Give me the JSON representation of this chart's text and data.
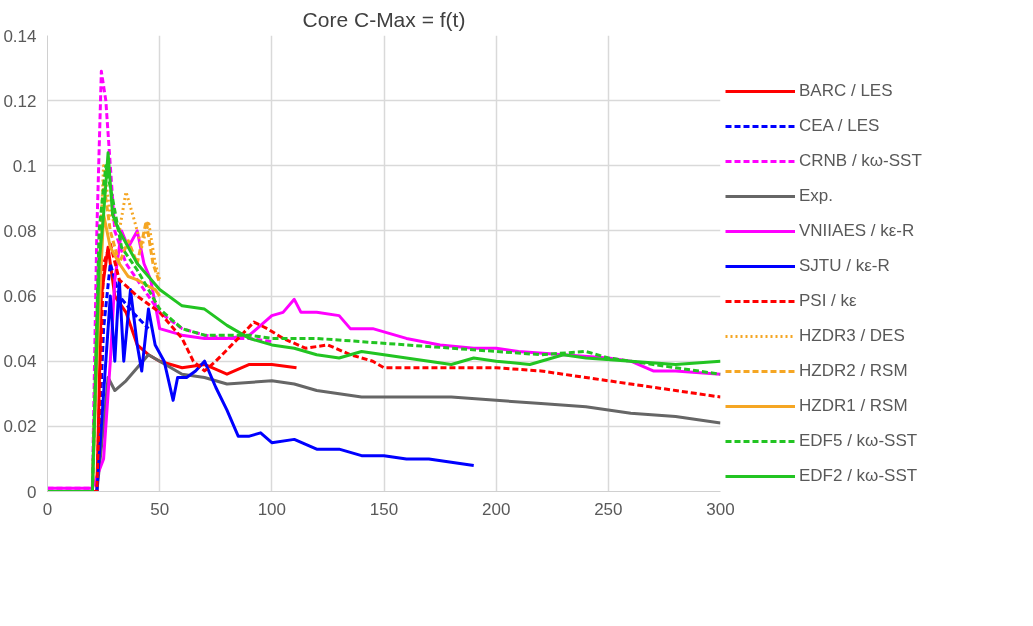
{
  "chart_data": {
    "type": "line",
    "title": "Core C-Max = f(t)",
    "xlim": [
      0,
      300
    ],
    "xticks": [
      0,
      50,
      100,
      150,
      200,
      250,
      300
    ],
    "ylim": [
      0,
      0.14
    ],
    "yticks": [
      0,
      0.02,
      0.04,
      0.06,
      0.08,
      0.1,
      0.12,
      0.14
    ],
    "grid": true,
    "legend": "right",
    "marker": "none",
    "series": [
      {
        "name": "BARC / LES",
        "color": "#ff0000",
        "line_style": "solid",
        "x": [
          0,
          22,
          24,
          27,
          30,
          35,
          40,
          45,
          50,
          60,
          70,
          80,
          90,
          100,
          111
        ],
        "values": [
          0,
          0,
          0.06,
          0.075,
          0.06,
          0.055,
          0.045,
          0.042,
          0.04,
          0.038,
          0.039,
          0.036,
          0.039,
          0.039,
          0.038
        ]
      },
      {
        "name": "CEA / LES",
        "color": "#0000ff",
        "line_style": "dashed",
        "x": [
          0,
          22,
          25,
          28,
          32,
          38,
          45
        ],
        "values": [
          0,
          0,
          0.05,
          0.07,
          0.06,
          0.055,
          0.05
        ]
      },
      {
        "name": "CRNB / kω-SST",
        "color": "#ff00ff",
        "line_style": "dashed",
        "x": [
          0,
          20,
          22,
          24,
          26,
          28,
          30,
          35,
          40,
          45,
          50,
          60,
          70,
          80,
          90,
          100
        ],
        "values": [
          0.001,
          0.001,
          0.08,
          0.129,
          0.12,
          0.1,
          0.08,
          0.07,
          0.065,
          0.06,
          0.055,
          0.05,
          0.048,
          0.047,
          0.047,
          0.046
        ]
      },
      {
        "name": "Exp.",
        "color": "#666666",
        "line_style": "solid",
        "x": [
          0,
          22,
          25,
          27,
          30,
          35,
          40,
          45,
          50,
          60,
          70,
          80,
          100,
          110,
          120,
          140,
          160,
          180,
          200,
          220,
          240,
          260,
          280,
          300
        ],
        "values": [
          0,
          0,
          0.02,
          0.035,
          0.031,
          0.034,
          0.038,
          0.042,
          0.04,
          0.036,
          0.035,
          0.033,
          0.034,
          0.033,
          0.031,
          0.029,
          0.029,
          0.029,
          0.028,
          0.027,
          0.026,
          0.024,
          0.023,
          0.021
        ]
      },
      {
        "name": "VNIIAES / kε-R",
        "color": "#ff00ff",
        "line_style": "solid",
        "x": [
          0,
          20,
          25,
          28,
          30,
          33,
          36,
          40,
          43,
          46,
          50,
          60,
          70,
          80,
          90,
          100,
          105,
          110,
          113,
          120,
          130,
          135,
          145,
          160,
          175,
          190,
          200,
          210,
          230,
          250,
          260,
          270,
          280,
          300
        ],
        "values": [
          0.001,
          0.001,
          0.01,
          0.04,
          0.065,
          0.08,
          0.075,
          0.08,
          0.07,
          0.065,
          0.05,
          0.048,
          0.047,
          0.047,
          0.048,
          0.054,
          0.055,
          0.059,
          0.055,
          0.055,
          0.054,
          0.05,
          0.05,
          0.047,
          0.045,
          0.044,
          0.044,
          0.043,
          0.042,
          0.041,
          0.04,
          0.037,
          0.037,
          0.036
        ]
      },
      {
        "name": "SJTU / kε-R",
        "color": "#0000ff",
        "line_style": "solid",
        "x": [
          0,
          22,
          25,
          28,
          30,
          32,
          34,
          37,
          40,
          42,
          45,
          48,
          52,
          56,
          58,
          62,
          66,
          70,
          75,
          80,
          85,
          90,
          95,
          100,
          110,
          120,
          130,
          140,
          150,
          160,
          170,
          180,
          190
        ],
        "values": [
          0,
          0,
          0.03,
          0.06,
          0.04,
          0.065,
          0.04,
          0.062,
          0.045,
          0.037,
          0.056,
          0.045,
          0.04,
          0.028,
          0.035,
          0.035,
          0.037,
          0.04,
          0.032,
          0.025,
          0.017,
          0.017,
          0.018,
          0.015,
          0.016,
          0.013,
          0.013,
          0.011,
          0.011,
          0.01,
          0.01,
          0.009,
          0.008
        ]
      },
      {
        "name": "PSI / kε",
        "color": "#ff0000",
        "line_style": "dashed",
        "x": [
          0,
          22,
          25,
          28,
          32,
          40,
          50,
          60,
          65,
          70,
          75,
          85,
          92,
          98,
          105,
          115,
          125,
          135,
          145,
          150,
          170,
          200,
          220,
          240,
          260,
          280,
          300
        ],
        "values": [
          0,
          0,
          0.07,
          0.076,
          0.065,
          0.06,
          0.055,
          0.047,
          0.04,
          0.037,
          0.04,
          0.047,
          0.052,
          0.05,
          0.047,
          0.044,
          0.045,
          0.042,
          0.04,
          0.038,
          0.038,
          0.038,
          0.037,
          0.035,
          0.033,
          0.031,
          0.029
        ]
      },
      {
        "name": "HZDR3 / DES",
        "color": "#f5a623",
        "line_style": "dotted",
        "x": [
          0,
          20,
          22,
          25,
          28,
          32,
          35,
          38,
          42,
          45,
          48,
          50
        ],
        "values": [
          0,
          0,
          0.05,
          0.1,
          0.085,
          0.08,
          0.092,
          0.085,
          0.075,
          0.083,
          0.07,
          0.065
        ]
      },
      {
        "name": "HZDR2 / RSM",
        "color": "#f5a623",
        "line_style": "dashed",
        "x": [
          0,
          20,
          22,
          25,
          28,
          32,
          36,
          40,
          44,
          47,
          50
        ],
        "values": [
          0,
          0,
          0.05,
          0.095,
          0.08,
          0.07,
          0.077,
          0.07,
          0.083,
          0.07,
          0.064
        ]
      },
      {
        "name": "HZDR1 / RSM",
        "color": "#f5a623",
        "line_style": "solid",
        "x": [
          0,
          20,
          22,
          25,
          28,
          32,
          36,
          40,
          45,
          48,
          50
        ],
        "values": [
          0,
          0,
          0.04,
          0.085,
          0.075,
          0.07,
          0.066,
          0.065,
          0.063,
          0.062,
          0.06
        ]
      },
      {
        "name": "EDF5 / kω-SST",
        "color": "#22c422",
        "line_style": "dashed",
        "x": [
          0,
          20,
          23,
          26,
          29,
          33,
          40,
          50,
          60,
          70,
          80,
          90,
          100,
          120,
          140,
          160,
          180,
          200,
          220,
          240,
          250,
          270,
          280,
          300
        ],
        "values": [
          0,
          0,
          0.08,
          0.1,
          0.09,
          0.075,
          0.068,
          0.056,
          0.05,
          0.048,
          0.048,
          0.048,
          0.047,
          0.047,
          0.046,
          0.045,
          0.044,
          0.043,
          0.042,
          0.043,
          0.041,
          0.039,
          0.038,
          0.036
        ]
      },
      {
        "name": "EDF2 / kω-SST",
        "color": "#22c422",
        "line_style": "solid",
        "x": [
          0,
          20,
          23,
          25,
          27,
          29,
          32,
          36,
          40,
          50,
          60,
          70,
          80,
          90,
          100,
          110,
          120,
          130,
          140,
          150,
          170,
          180,
          190,
          200,
          215,
          230,
          240,
          260,
          280,
          300
        ],
        "values": [
          0,
          0,
          0.07,
          0.085,
          0.104,
          0.085,
          0.08,
          0.075,
          0.07,
          0.062,
          0.057,
          0.056,
          0.051,
          0.047,
          0.045,
          0.044,
          0.042,
          0.041,
          0.043,
          0.042,
          0.04,
          0.039,
          0.041,
          0.04,
          0.039,
          0.042,
          0.041,
          0.04,
          0.039,
          0.04
        ]
      }
    ]
  }
}
